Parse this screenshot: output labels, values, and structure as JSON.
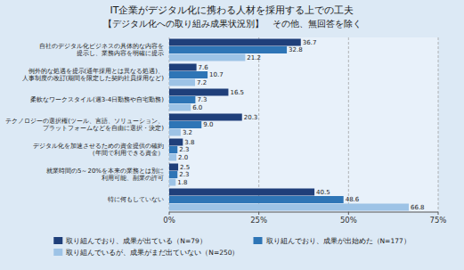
{
  "chart_data": {
    "type": "bar",
    "orientation": "horizontal",
    "title": "IT企業がデジタル化に携わる人材を採用する上での工夫",
    "subtitle": "【デジタル化への取り組み成果状況別】　その他、無回答を除く",
    "categories": [
      "自社のデジタル化ビジネスの具体的な内容を\n提示し、業務内容を明確に提示",
      "例外的な処遇を提示(通年採用とは異なる処遇)、\n人事制度の改訂(期間を限定した契約社員採用など)",
      "柔軟なワークスタイル(週3-4日勤務や自宅勤務)",
      "テクノロジーの選択権(ツール、言語、ソリューション、\nプラットフォームなどを自由に選択・決定)",
      "デジタル化を加速させるための資金提供の確約\n（年間で利用できる資金）",
      "就業時間の5～20%を本来の業務とは別に\n利用可能、副業の許可",
      "特に何もしていない"
    ],
    "series": [
      {
        "name": "取り組んでおり、成果が出ている（N=79）",
        "color": "#1f3f7a",
        "values": [
          36.7,
          7.6,
          16.5,
          20.3,
          3.8,
          2.5,
          40.5
        ]
      },
      {
        "name": "取り組んでおり、成果が出始めた（N=177）",
        "color": "#2e75b6",
        "values": [
          32.8,
          10.7,
          7.3,
          9.0,
          2.3,
          2.3,
          48.6
        ],
        "value_labels": [
          "32.8",
          "10.7",
          "7.3",
          "9.0",
          "2.3",
          "2.3",
          "48.6"
        ]
      },
      {
        "name": "取り組んでいるが、成果がまだ出ていない（N=250）",
        "color": "#9dc3e6",
        "values": [
          21.2,
          7.2,
          6.0,
          3.2,
          2.0,
          1.8,
          66.8
        ],
        "value_labels": [
          "21.2",
          "7.2",
          "6.0",
          "3.2",
          "2.0",
          "1.8",
          "66.8"
        ]
      }
    ],
    "xlim": [
      0,
      75
    ],
    "xticks": [
      {
        "value": 0,
        "label": "0%"
      },
      {
        "value": 25,
        "label": "25%"
      },
      {
        "value": 50,
        "label": "50%"
      },
      {
        "value": 75,
        "label": "75%"
      }
    ],
    "grid": true,
    "data_labels": true,
    "legend": "bottom"
  }
}
